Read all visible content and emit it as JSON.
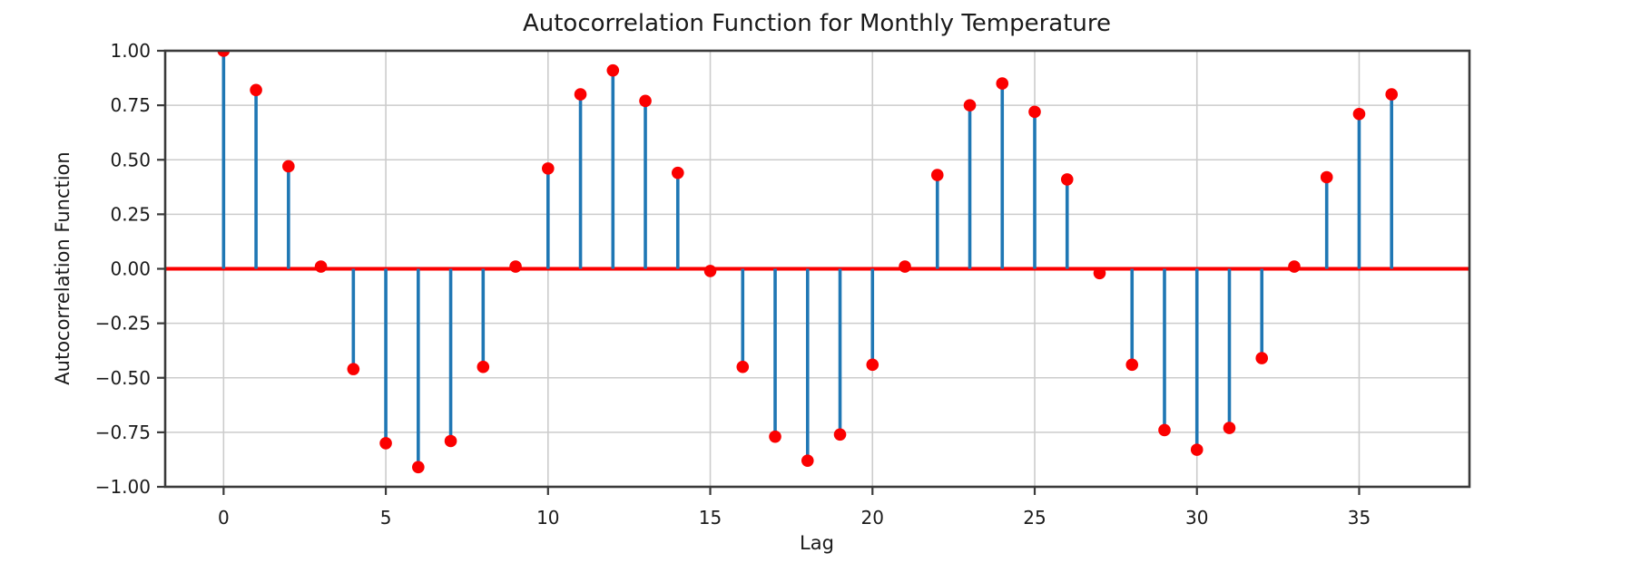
{
  "figure": {
    "title": "Autocorrelation Function for Monthly Temperature",
    "xlabel": "Lag",
    "ylabel": "Autocorrelation Function"
  },
  "chart_data": {
    "type": "scatter",
    "subtype": "stem",
    "title": "Autocorrelation Function for Monthly Temperature",
    "xlabel": "Lag",
    "ylabel": "Autocorrelation Function",
    "x": [
      0,
      1,
      2,
      3,
      4,
      5,
      6,
      7,
      8,
      9,
      10,
      11,
      12,
      13,
      14,
      15,
      16,
      17,
      18,
      19,
      20,
      21,
      22,
      23,
      24,
      25,
      26,
      27,
      28,
      29,
      30,
      31,
      32,
      33,
      34,
      35,
      36
    ],
    "values": [
      1.0,
      0.82,
      0.47,
      0.01,
      -0.46,
      -0.8,
      -0.91,
      -0.79,
      -0.45,
      0.01,
      0.46,
      0.8,
      0.91,
      0.77,
      0.44,
      -0.01,
      -0.45,
      -0.77,
      -0.88,
      -0.76,
      -0.44,
      0.01,
      0.43,
      0.75,
      0.85,
      0.72,
      0.41,
      -0.02,
      -0.44,
      -0.74,
      -0.83,
      -0.73,
      -0.41,
      0.01,
      0.42,
      0.71,
      0.8
    ],
    "baseline": 0,
    "xlim": [
      -1.8,
      38.4
    ],
    "ylim": [
      -1.0,
      1.0
    ],
    "xticks": [
      0,
      5,
      10,
      15,
      20,
      25,
      30,
      35
    ],
    "xtick_labels": [
      "0",
      "5",
      "10",
      "15",
      "20",
      "25",
      "30",
      "35"
    ],
    "yticks": [
      1.0,
      0.75,
      0.5,
      0.25,
      0.0,
      -0.25,
      -0.5,
      -0.75,
      -1.0
    ],
    "ytick_labels": [
      "1.00",
      "0.75",
      "0.50",
      "0.25",
      "0.00",
      "−0.25",
      "−0.50",
      "−0.75",
      "−1.00"
    ],
    "grid": true,
    "legend": "none",
    "colors": {
      "stem": "#1f77b4",
      "marker": "#fb0000",
      "zero_line": "#fb0000",
      "grid": "#cccccc",
      "spine": "#3a3a3a",
      "text": "#1b1b1b"
    }
  }
}
